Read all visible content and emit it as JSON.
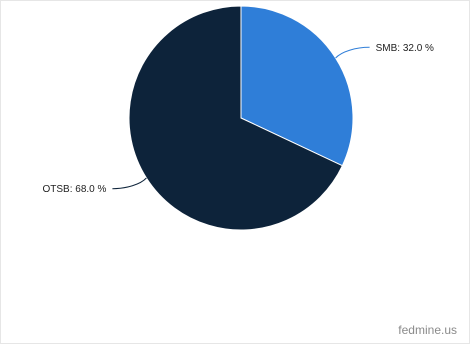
{
  "chart_data": {
    "type": "pie",
    "slices": [
      {
        "label": "SMB: 32.0 %",
        "value": 32.0,
        "color": "#2f7ed8"
      },
      {
        "label": "OTSB: 68.0 %",
        "value": 68.0,
        "color": "#0d233a"
      }
    ],
    "legend": "none"
  },
  "watermark": "fedmine.us"
}
